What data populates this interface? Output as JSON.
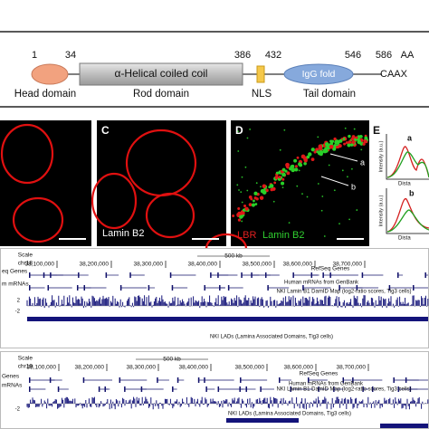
{
  "domain_diagram": {
    "positions": [
      "1",
      "34",
      "386",
      "432",
      "546",
      "586",
      "AA"
    ],
    "segments": {
      "coiled_coil": "α-Helical coiled coil",
      "igg": "IgG fold",
      "caax": "CAAX"
    },
    "labels": {
      "head": "Head domain",
      "rod": "Rod domain",
      "nls": "NLS",
      "tail": "Tail domain"
    }
  },
  "panels": {
    "c": {
      "letter": "C",
      "caption": "Lamin B2"
    },
    "d": {
      "letter": "D",
      "red": "LBR",
      "green": "Lamin B2",
      "point_a": "a",
      "point_b": "b"
    },
    "e": {
      "letter": "E",
      "plot_a": "a",
      "plot_b": "b",
      "ylabel_a": "Intensity (a.u.)",
      "ylabel_b": "Intensity (a.u.)",
      "xlabel_a": "Dista",
      "xlabel_b": "Dista"
    }
  },
  "browser_1": {
    "scale": "Scale",
    "chrom": "chr18",
    "kb": "500 kb",
    "ticks": [
      "38,100,000",
      "38,200,000",
      "38,300,000",
      "38,400,000",
      "38,500,000",
      "38,600,000",
      "38,700,000"
    ],
    "genes_left": "eq Genes",
    "genes": "RefSeq Genes",
    "mrna_left": "m mRNAs",
    "mrna": "Human mRNAs from GenBank",
    "damid": "NKI Lamin B1 DamID Map (log2-ratio scores, Tig3 cells)",
    "y_top": "2",
    "y_bottom": "-2",
    "lads": "NKI LADs (Lamina Associated Domains, Tig3 cells)"
  },
  "browser_2": {
    "scale": "Scale",
    "chrom": "chr19",
    "kb": "500 kb",
    "ticks": [
      "38,100,000",
      "38,200,000",
      "38,300,000",
      "38,400,000",
      "38,500,000",
      "38,600,000",
      "38,700,000"
    ],
    "genes_left": "Genes",
    "genes": "RefSeq Genes",
    "mrna_left": "mRNAs",
    "mrna": "Human mRNAs from GenBank",
    "damid": "NKI Lamin B1 DamID Map (log2-ratio scores, Tig3 cells)",
    "y_bottom": "-2",
    "lads": "NKI LADs (Lamina Associated Domains, Tig3 cells)"
  }
}
